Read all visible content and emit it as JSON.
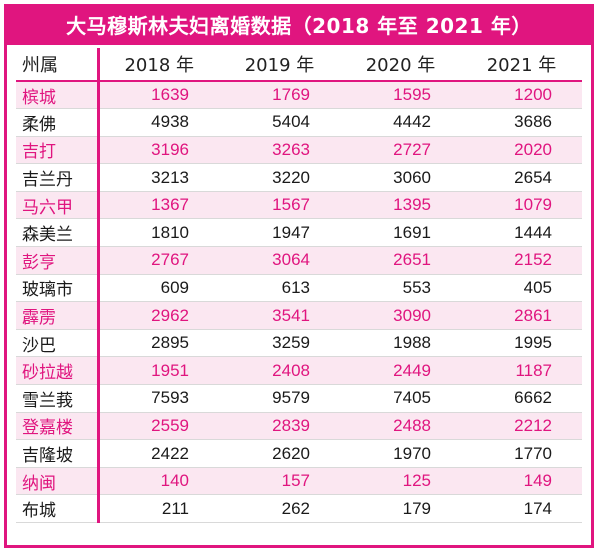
{
  "chart_data": {
    "type": "table",
    "title": "大马穆斯林夫妇离婚数据（2018 年至 2021 年）",
    "header": [
      "州属",
      "2018 年",
      "2019 年",
      "2020 年",
      "2021 年"
    ],
    "rows": [
      {
        "state": "槟城",
        "values": [
          "1639",
          "1769",
          "1595",
          "1200"
        ],
        "highlight": true
      },
      {
        "state": "柔佛",
        "values": [
          "4938",
          "5404",
          "4442",
          "3686"
        ],
        "highlight": false
      },
      {
        "state": "吉打",
        "values": [
          "3196",
          "3263",
          "2727",
          "2020"
        ],
        "highlight": true
      },
      {
        "state": "吉兰丹",
        "values": [
          "3213",
          "3220",
          "3060",
          "2654"
        ],
        "highlight": false
      },
      {
        "state": "马六甲",
        "values": [
          "1367",
          "1567",
          "1395",
          "1079"
        ],
        "highlight": true
      },
      {
        "state": "森美兰",
        "values": [
          "1810",
          "1947",
          "1691",
          "1444"
        ],
        "highlight": false
      },
      {
        "state": "彭亨",
        "values": [
          "2767",
          "3064",
          "2651",
          "2152"
        ],
        "highlight": true
      },
      {
        "state": "玻璃市",
        "values": [
          "609",
          "613",
          "553",
          "405"
        ],
        "highlight": false
      },
      {
        "state": "霹雳",
        "values": [
          "2962",
          "3541",
          "3090",
          "2861"
        ],
        "highlight": true
      },
      {
        "state": "沙巴",
        "values": [
          "2895",
          "3259",
          "1988",
          "1995"
        ],
        "highlight": false
      },
      {
        "state": "砂拉越",
        "values": [
          "1951",
          "2408",
          "2449",
          "1187"
        ],
        "highlight": true
      },
      {
        "state": "雪兰莪",
        "values": [
          "7593",
          "9579",
          "7405",
          "6662"
        ],
        "highlight": false
      },
      {
        "state": "登嘉楼",
        "values": [
          "2559",
          "2839",
          "2488",
          "2212"
        ],
        "highlight": true
      },
      {
        "state": "吉隆坡",
        "values": [
          "2422",
          "2620",
          "1970",
          "1770"
        ],
        "highlight": false
      },
      {
        "state": "纳闽",
        "values": [
          "140",
          "157",
          "125",
          "149"
        ],
        "highlight": true
      },
      {
        "state": "布城",
        "values": [
          "211",
          "262",
          "179",
          "174"
        ],
        "highlight": false
      }
    ]
  },
  "colors": {
    "accent": "#e0157f",
    "highlight_row_bg": "#fbe7f1",
    "text": "#1a1a1a"
  }
}
